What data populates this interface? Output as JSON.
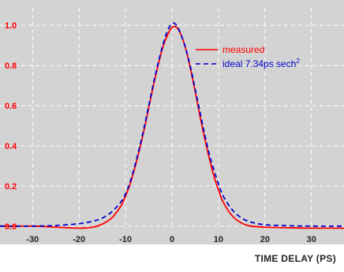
{
  "chart_data": {
    "type": "line",
    "xlabel": "TIME DELAY (PS)",
    "ylabel": "",
    "xlim": [
      -37,
      37
    ],
    "ylim": [
      -0.04,
      1.04
    ],
    "x_ticks": [
      -30,
      -20,
      -10,
      0,
      10,
      20,
      30
    ],
    "x_tick_labels": [
      "-30",
      "-20",
      "-10",
      "0",
      "10",
      "20",
      "30"
    ],
    "y_ticks": [
      0.0,
      0.2,
      0.4,
      0.6,
      0.8,
      1.0
    ],
    "y_tick_labels": [
      "0.0",
      "0.2",
      "0.4",
      "0.6",
      "0.8",
      "1.0"
    ],
    "grid": true,
    "legend_position": "top-right",
    "series": [
      {
        "name": "measured",
        "style": "solid",
        "color": "#ff0000",
        "x": [
          -37,
          -30,
          -25,
          -20,
          -17,
          -15,
          -13,
          -11,
          -10,
          -9,
          -8,
          -7,
          -6,
          -5,
          -4,
          -3,
          -2,
          -1,
          0,
          1,
          2,
          3,
          4,
          5,
          6,
          7,
          8,
          9,
          10,
          11,
          13,
          15,
          17,
          20,
          25,
          30,
          37
        ],
        "y": [
          0.0,
          0.0,
          -0.005,
          -0.01,
          -0.005,
          0.01,
          0.04,
          0.1,
          0.15,
          0.21,
          0.29,
          0.38,
          0.48,
          0.59,
          0.7,
          0.8,
          0.89,
          0.95,
          0.99,
          0.99,
          0.95,
          0.88,
          0.78,
          0.67,
          0.55,
          0.44,
          0.34,
          0.25,
          0.18,
          0.12,
          0.05,
          0.015,
          0.0,
          -0.005,
          -0.008,
          -0.01,
          -0.01
        ]
      },
      {
        "name": "ideal 7.34ps sech",
        "name_superscript": "2",
        "style": "dashed",
        "color": "#0000cc",
        "x": [
          -37,
          -30,
          -25,
          -20,
          -17,
          -15,
          -13,
          -11,
          -10,
          -9,
          -8,
          -7,
          -6,
          -5,
          -4,
          -3,
          -2,
          -1,
          0,
          1,
          2,
          3,
          4,
          5,
          6,
          7,
          8,
          9,
          10,
          11,
          13,
          15,
          17,
          20,
          25,
          30,
          37
        ],
        "y": [
          0.0,
          0.0,
          0.003,
          0.012,
          0.025,
          0.04,
          0.07,
          0.12,
          0.16,
          0.22,
          0.3,
          0.39,
          0.49,
          0.6,
          0.71,
          0.81,
          0.9,
          0.97,
          1.01,
          1.0,
          0.95,
          0.88,
          0.79,
          0.68,
          0.57,
          0.46,
          0.36,
          0.28,
          0.21,
          0.15,
          0.08,
          0.04,
          0.02,
          0.007,
          0.002,
          0.0,
          0.0
        ]
      }
    ]
  },
  "colors": {
    "plot_background": "#d3d3d3",
    "grid": "#ffffff",
    "tick_label": "#ff0000",
    "measured": "#ff0000",
    "ideal": "#0000cc"
  }
}
